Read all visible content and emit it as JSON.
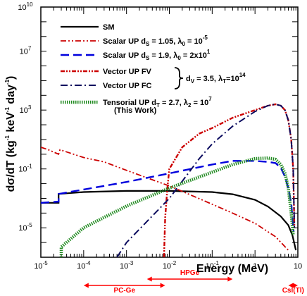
{
  "chart_data": {
    "type": "line",
    "xlabel": "Energy (MeV)",
    "ylabel": "dσ/dT (kg⁻¹ keV⁻¹ day⁻¹)",
    "xscale": "log",
    "yscale": "log",
    "xlim": [
      1e-05,
      10
    ],
    "ylim": [
      1e-07,
      10000000000.0
    ],
    "x_ticks": [
      {
        "value": 1e-05,
        "base": "10",
        "exp": "-5"
      },
      {
        "value": 0.0001,
        "base": "10",
        "exp": "-4"
      },
      {
        "value": 0.001,
        "base": "10",
        "exp": "-3"
      },
      {
        "value": 0.01,
        "base": "10",
        "exp": "-2"
      },
      {
        "value": 0.1,
        "base": "10",
        "exp": "-1"
      },
      {
        "value": 1,
        "base": "1",
        "exp": ""
      },
      {
        "value": 10,
        "base": "10",
        "exp": ""
      }
    ],
    "y_ticks": [
      {
        "value": 1e-05,
        "base": "10",
        "exp": "-5"
      },
      {
        "value": 0.1,
        "base": "10",
        "exp": "-1"
      },
      {
        "value": 1000.0,
        "base": "10",
        "exp": "3"
      },
      {
        "value": 10000000.0,
        "base": "10",
        "exp": "7"
      },
      {
        "value": 10000000000.0,
        "base": "10",
        "exp": "10"
      }
    ],
    "grid": false,
    "legend_position": "top-left",
    "series": [
      {
        "name": "SM",
        "color": "#000000",
        "dash": "solid",
        "points": [
          [
            1e-05,
            0.0005
          ],
          [
            2.6e-05,
            0.0005
          ],
          [
            2.6e-05,
            0.002
          ],
          [
            4e-05,
            0.0022
          ],
          [
            0.0001,
            0.0027
          ],
          [
            0.001,
            0.0032
          ],
          [
            0.01,
            0.0032
          ],
          [
            0.1,
            0.0027
          ],
          [
            0.3,
            0.0019
          ],
          [
            1,
            0.0008
          ],
          [
            2,
            0.00028
          ],
          [
            4,
            6e-05
          ],
          [
            6,
            1.5e-05
          ],
          [
            7.5,
            3e-06
          ],
          [
            9,
            3e-07
          ]
        ]
      },
      {
        "name": "Scalar UP d_S = 1.05, λ_0 = 10^-5",
        "color": "#cc0000",
        "dash": "dashdotdot",
        "points": [
          [
            1e-05,
            3
          ],
          [
            1.5e-05,
            2
          ],
          [
            2.6e-05,
            1
          ],
          [
            2.8e-05,
            2
          ],
          [
            0.0001,
            0.6
          ],
          [
            0.0003,
            0.3
          ],
          [
            0.001,
            0.08
          ],
          [
            0.003,
            0.025
          ],
          [
            0.01,
            0.007
          ],
          [
            0.03,
            0.0018
          ],
          [
            0.1,
            0.0004
          ],
          [
            0.3,
            0.0001
          ],
          [
            1,
            2e-05
          ],
          [
            3,
            2.5e-06
          ],
          [
            6,
            3e-07
          ]
        ]
      },
      {
        "name": "Scalar UP d_S = 1.9, λ_0 = 2x10^1",
        "color": "#0000dd",
        "dash": "longdash",
        "points": [
          [
            1e-05,
            0.0005
          ],
          [
            2.6e-05,
            0.0006
          ],
          [
            2.6e-05,
            0.002
          ],
          [
            0.0001,
            0.004
          ],
          [
            0.001,
            0.013
          ],
          [
            0.01,
            0.05
          ],
          [
            0.1,
            0.2
          ],
          [
            0.3,
            0.35
          ],
          [
            1,
            0.35
          ],
          [
            2,
            0.3
          ],
          [
            3,
            0.25
          ],
          [
            4,
            0.12
          ],
          [
            5,
            0.03
          ],
          [
            6,
            0.005
          ],
          [
            7,
            0.0005
          ],
          [
            8,
            5e-06
          ]
        ]
      },
      {
        "name": "Vector UP FV",
        "color": "#cc0000",
        "dash": "dense",
        "points": [
          [
            0.0075,
            1e-07
          ],
          [
            0.008,
            5e-05
          ],
          [
            0.009,
            0.005
          ],
          [
            0.01,
            0.1
          ],
          [
            0.02,
            3
          ],
          [
            0.05,
            25
          ],
          [
            0.1,
            60
          ],
          [
            0.3,
            300
          ],
          [
            1,
            1000
          ],
          [
            2,
            2000
          ],
          [
            3,
            2500
          ],
          [
            4,
            2000
          ],
          [
            5,
            1000
          ],
          [
            6,
            200
          ],
          [
            7,
            10
          ],
          [
            7.8,
            0.1
          ],
          [
            8.3,
            1e-05
          ]
        ]
      },
      {
        "name": "Vector UP FC",
        "color": "#0a0a5e",
        "dash": "dashdot",
        "points": [
          [
            0.0006,
            1e-07
          ],
          [
            0.001,
            1e-06
          ],
          [
            0.01,
            0.001
          ],
          [
            0.05,
            0.5
          ],
          [
            0.1,
            5
          ],
          [
            0.3,
            80
          ],
          [
            1,
            800
          ],
          [
            2,
            2000
          ],
          [
            3,
            2500
          ],
          [
            4,
            2000
          ],
          [
            5,
            1000
          ],
          [
            6,
            200
          ],
          [
            7,
            10
          ],
          [
            7.8,
            0.1
          ],
          [
            8.3,
            1e-05
          ]
        ]
      },
      {
        "name": "Tensorial UP d_T = 2.7, λ_2 = 10^7",
        "color": "#228b22",
        "dash": "dotted",
        "points": [
          [
            3e-05,
            1e-07
          ],
          [
            3e-05,
            5e-07
          ],
          [
            0.0001,
            1e-05
          ],
          [
            0.001,
            0.0003
          ],
          [
            0.01,
            0.005
          ],
          [
            0.1,
            0.06
          ],
          [
            0.3,
            0.2
          ],
          [
            1,
            0.5
          ],
          [
            2,
            0.55
          ],
          [
            3,
            0.45
          ],
          [
            4,
            0.2
          ],
          [
            5,
            0.05
          ],
          [
            6,
            0.005
          ],
          [
            7,
            0.0001
          ],
          [
            7.8,
            3e-06
          ]
        ]
      }
    ],
    "legend": [
      {
        "label": "SM",
        "color": "#000000",
        "dash": "solid"
      },
      {
        "label": "Scalar UP d",
        "sub": "S",
        "tail": " = 1.05, λ",
        "sub2": "0",
        "tail2": " = 10",
        "sup2": "-5",
        "color": "#cc0000",
        "dash": "dashdotdot"
      },
      {
        "label": "Scalar UP d",
        "sub": "S",
        "tail": " = 1.9, λ",
        "sub2": "0",
        "tail2": " = 2x10",
        "sup2": "1",
        "color": "#0000dd",
        "dash": "longdash"
      },
      {
        "label": "Vector UP FV",
        "color": "#cc0000",
        "dash": "dense"
      },
      {
        "label": "Vector UP FC",
        "color": "#0a0a5e",
        "dash": "dashdot"
      },
      {
        "label": "Tensorial UP d",
        "sub": "T",
        "tail": " = 2.7, λ",
        "sub2": "2",
        "tail2": " = 10",
        "sup2": "7",
        "color": "#228b22",
        "dash": "dotted"
      }
    ],
    "legend_note": "(This Work)",
    "vector_brace_label": {
      "d": "d",
      "dsub": "V",
      "mid": " = 3.5, λ",
      "lsub": "T",
      "eq": "=10",
      "exp": "14"
    },
    "detector_ranges": [
      {
        "label": "PC-Ge",
        "from": 0.0001,
        "to": 0.008,
        "color": "#ff0000"
      },
      {
        "label": "HPGe",
        "from": 0.003,
        "to": 0.3,
        "color": "#ff0000"
      },
      {
        "label": "CsI(Tl)",
        "from": 6,
        "to": 10,
        "color": "#ff0000"
      }
    ]
  }
}
